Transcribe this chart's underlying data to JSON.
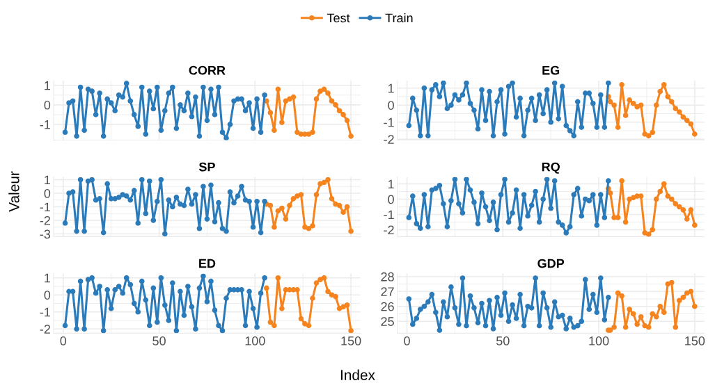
{
  "chart_data": [
    {
      "type": "line",
      "title": "CORR",
      "xlabel": "Index",
      "ylabel": "Valeur",
      "legend": "top",
      "marker": "circle",
      "grid": true,
      "tick_labels": "y",
      "xlim": [
        -5,
        155
      ],
      "xticks": [
        0,
        50,
        100,
        150
      ],
      "ylim": [
        -1.8,
        1.25
      ],
      "yticks": [
        -1,
        0,
        1
      ],
      "series": [
        {
          "name": "Test",
          "color": "#f5841f",
          "x": [
            106,
            108,
            110,
            112,
            114,
            116,
            118,
            120,
            122,
            124,
            126,
            128,
            130,
            132,
            134,
            136,
            138,
            140,
            142,
            144,
            146,
            148,
            150
          ],
          "values": [
            0.2,
            -0.4,
            -1.3,
            0.8,
            -0.9,
            0.2,
            0.3,
            0.4,
            -1.4,
            -1.5,
            -1.5,
            -1.5,
            -1.4,
            0.3,
            0.7,
            0.8,
            0.6,
            0.2,
            0.0,
            -0.3,
            -0.5,
            -0.8,
            -1.6
          ]
        },
        {
          "name": "Train",
          "color": "#2b7bba",
          "x": [
            1,
            3,
            5,
            7,
            9,
            11,
            13,
            15,
            17,
            19,
            21,
            23,
            25,
            27,
            29,
            31,
            33,
            35,
            37,
            39,
            41,
            43,
            45,
            47,
            49,
            51,
            53,
            55,
            57,
            59,
            61,
            63,
            65,
            67,
            69,
            71,
            73,
            75,
            77,
            79,
            81,
            83,
            85,
            87,
            89,
            91,
            93,
            95,
            97,
            99,
            101,
            103,
            105
          ],
          "values": [
            -1.4,
            0.1,
            0.2,
            -1.6,
            0.9,
            -1.3,
            0.8,
            0.7,
            -0.5,
            0.6,
            -1.6,
            0.3,
            0.1,
            -0.3,
            0.5,
            0.4,
            1.1,
            0.2,
            -0.5,
            -1.1,
            0.9,
            -1.5,
            0.7,
            -0.2,
            0.9,
            -1.3,
            -0.3,
            0.6,
            0.9,
            -1.2,
            0.0,
            -0.3,
            0.6,
            -0.6,
            0.4,
            -1.6,
            0.9,
            -0.8,
            0.8,
            -0.5,
            0.9,
            -1.4,
            -1.7,
            -1.0,
            0.2,
            0.3,
            0.3,
            -0.3,
            0.1,
            -1.2,
            0.3,
            -1.4,
            0.5
          ]
        }
      ]
    },
    {
      "type": "line",
      "title": "EG",
      "marker": "circle",
      "grid": true,
      "tick_labels": "y",
      "xlim": [
        -5,
        155
      ],
      "xticks": [
        0,
        50,
        100,
        150
      ],
      "ylim": [
        -2.05,
        1.45
      ],
      "yticks": [
        -2,
        -1,
        0,
        1
      ],
      "series": [
        {
          "color": "#f5841f",
          "x": [
            105,
            106,
            108,
            110,
            112,
            114,
            116,
            118,
            120,
            122,
            124,
            126,
            128,
            130,
            132,
            134,
            136,
            138,
            140,
            142,
            144,
            146,
            148,
            150
          ],
          "values": [
            0.5,
            0.2,
            0.0,
            -1.3,
            1.2,
            -0.6,
            0.3,
            0.1,
            -0.1,
            0.0,
            -1.7,
            -1.8,
            -1.6,
            0.0,
            0.8,
            1.2,
            0.5,
            0.2,
            -0.2,
            -0.4,
            -0.7,
            -0.9,
            -1.1,
            -1.7
          ]
        },
        {
          "color": "#2b7bba",
          "x": [
            1,
            3,
            5,
            7,
            9,
            11,
            13,
            15,
            17,
            19,
            21,
            23,
            25,
            27,
            29,
            31,
            33,
            35,
            37,
            39,
            41,
            43,
            45,
            47,
            49,
            51,
            53,
            55,
            57,
            59,
            61,
            63,
            65,
            67,
            69,
            71,
            73,
            75,
            77,
            79,
            81,
            83,
            85,
            87,
            89,
            91,
            93,
            95,
            97,
            99,
            101,
            103,
            105
          ],
          "values": [
            -1.2,
            0.4,
            -0.3,
            -1.8,
            1.0,
            -1.8,
            0.9,
            1.2,
            0.5,
            1.3,
            -0.2,
            0.0,
            0.6,
            0.3,
            0.6,
            1.3,
            0.1,
            -0.3,
            -1.4,
            0.9,
            -0.9,
            0.8,
            -1.8,
            0.2,
            0.9,
            -1.7,
            1.1,
            1.3,
            -0.7,
            0.4,
            -1.8,
            -0.3,
            0.4,
            -0.9,
            0.6,
            -0.5,
            0.9,
            -1.0,
            1.3,
            -0.8,
            1.1,
            -1.2,
            -1.5,
            -1.8,
            0.2,
            -1.3,
            0.7,
            0.7,
            0.1,
            -1.3,
            0.6,
            -1.3,
            1.3
          ]
        }
      ]
    },
    {
      "type": "line",
      "title": "SP",
      "marker": "circle",
      "grid": true,
      "tick_labels": "y",
      "xlim": [
        -5,
        155
      ],
      "xticks": [
        0,
        50,
        100,
        150
      ],
      "ylim": [
        -3.2,
        1.2
      ],
      "yticks": [
        -3,
        -2,
        -1,
        0,
        1
      ],
      "series": [
        {
          "color": "#f5841f",
          "x": [
            106,
            108,
            110,
            112,
            114,
            116,
            118,
            120,
            122,
            124,
            126,
            128,
            130,
            132,
            134,
            136,
            138,
            140,
            142,
            144,
            146,
            148,
            150
          ],
          "values": [
            -0.8,
            -0.9,
            -2.5,
            -1.3,
            -1.1,
            -1.9,
            -0.9,
            -0.4,
            -0.2,
            -0.1,
            -2.5,
            -2.6,
            -2.4,
            -0.1,
            0.7,
            0.8,
            1.0,
            -0.4,
            -0.8,
            -0.9,
            -1.4,
            -1.0,
            -2.8
          ]
        },
        {
          "color": "#2b7bba",
          "x": [
            1,
            3,
            5,
            7,
            9,
            11,
            13,
            15,
            17,
            19,
            21,
            23,
            25,
            27,
            29,
            31,
            33,
            35,
            37,
            39,
            41,
            43,
            45,
            47,
            49,
            51,
            53,
            55,
            57,
            59,
            61,
            63,
            65,
            67,
            69,
            71,
            73,
            75,
            77,
            79,
            81,
            83,
            85,
            87,
            89,
            91,
            93,
            95,
            97,
            99,
            101,
            103,
            105
          ],
          "values": [
            -2.2,
            0.0,
            0.1,
            -2.8,
            1.0,
            -2.8,
            0.9,
            1.0,
            -0.5,
            -0.4,
            -2.9,
            0.7,
            -0.4,
            -0.4,
            -0.3,
            -0.1,
            -0.2,
            -0.5,
            0.2,
            -2.2,
            1.0,
            -1.5,
            0.9,
            -2.0,
            -0.6,
            1.0,
            -3.0,
            -0.5,
            -1.0,
            -0.3,
            -0.8,
            -0.9,
            0.3,
            -0.8,
            -0.1,
            -2.6,
            0.5,
            -1.9,
            0.6,
            -2.1,
            -0.7,
            -2.6,
            -2.8,
            0.1,
            -0.7,
            -0.2,
            0.5,
            -0.5,
            -0.6,
            -2.5,
            -0.6,
            -2.9,
            -0.6
          ]
        }
      ]
    },
    {
      "type": "line",
      "title": "RQ",
      "marker": "circle",
      "grid": true,
      "tick_labels": "y",
      "xlim": [
        -5,
        155
      ],
      "xticks": [
        0,
        50,
        100,
        150
      ],
      "ylim": [
        -2.45,
        1.45
      ],
      "yticks": [
        -2,
        -1,
        0,
        1
      ],
      "series": [
        {
          "color": "#f5841f",
          "x": [
            105,
            106,
            108,
            110,
            112,
            114,
            116,
            118,
            120,
            122,
            124,
            126,
            128,
            130,
            132,
            134,
            136,
            138,
            140,
            142,
            144,
            146,
            148,
            150
          ],
          "values": [
            0.7,
            0.4,
            -1.2,
            -1.2,
            1.2,
            -1.5,
            0.0,
            0.1,
            0.2,
            0.2,
            -2.2,
            -2.3,
            -2.0,
            0.0,
            0.5,
            1.0,
            0.2,
            0.0,
            -0.3,
            -0.5,
            -0.7,
            -1.3,
            -0.7,
            -1.7
          ]
        },
        {
          "color": "#2b7bba",
          "x": [
            1,
            3,
            5,
            7,
            9,
            11,
            13,
            15,
            17,
            19,
            21,
            23,
            25,
            27,
            29,
            31,
            33,
            35,
            37,
            39,
            41,
            43,
            45,
            47,
            49,
            51,
            53,
            55,
            57,
            59,
            61,
            63,
            65,
            67,
            69,
            71,
            73,
            75,
            77,
            79,
            81,
            83,
            85,
            87,
            89,
            91,
            93,
            95,
            97,
            99,
            101,
            103,
            105
          ],
          "values": [
            -1.2,
            0.2,
            -1.6,
            -1.9,
            0.3,
            -1.8,
            0.6,
            0.7,
            0.9,
            -0.3,
            -1.8,
            -0.1,
            1.3,
            -0.3,
            -0.9,
            1.3,
            0.6,
            -0.2,
            -1.6,
            0.4,
            -0.5,
            -1.4,
            -0.2,
            -2.0,
            0.3,
            1.3,
            -1.5,
            -0.9,
            0.6,
            -1.9,
            0.3,
            -1.1,
            -0.4,
            0.5,
            -1.5,
            0.0,
            1.3,
            -0.6,
            1.2,
            -1.5,
            -1.7,
            -2.2,
            -1.8,
            0.3,
            0.7,
            -1.1,
            0.0,
            -0.1,
            0.3,
            -1.7,
            0.3,
            -1.2,
            1.2
          ]
        }
      ]
    },
    {
      "type": "line",
      "title": "ED",
      "marker": "circle",
      "grid": true,
      "xlim": [
        -5,
        155
      ],
      "xticks": [
        0,
        50,
        100,
        150
      ],
      "ylim": [
        -2.25,
        1.25
      ],
      "yticks": [
        -2,
        -1,
        0,
        1
      ],
      "series": [
        {
          "color": "#f5841f",
          "x": [
            106,
            108,
            110,
            112,
            114,
            116,
            118,
            120,
            122,
            124,
            126,
            128,
            130,
            132,
            134,
            136,
            138,
            140,
            142,
            144,
            146,
            148,
            150
          ],
          "values": [
            0.4,
            -1.6,
            -1.8,
            1.0,
            -0.8,
            0.3,
            0.3,
            0.3,
            0.3,
            -1.4,
            -1.7,
            -1.8,
            -0.2,
            0.7,
            0.9,
            1.0,
            0.2,
            0.0,
            -0.1,
            -0.8,
            -0.7,
            -0.6,
            -2.1
          ]
        },
        {
          "color": "#2b7bba",
          "x": [
            1,
            3,
            5,
            7,
            9,
            11,
            13,
            15,
            17,
            19,
            21,
            23,
            25,
            27,
            29,
            31,
            33,
            35,
            37,
            39,
            41,
            43,
            45,
            47,
            49,
            51,
            53,
            55,
            57,
            59,
            61,
            63,
            65,
            67,
            69,
            71,
            73,
            75,
            77,
            79,
            81,
            83,
            85,
            87,
            89,
            91,
            93,
            95,
            97,
            99,
            101,
            103,
            105
          ],
          "values": [
            -1.8,
            0.2,
            0.2,
            -2.0,
            0.8,
            -2.0,
            0.9,
            1.0,
            0.1,
            0.5,
            -2.1,
            0.3,
            -0.8,
            0.3,
            0.5,
            0.1,
            1.0,
            0.6,
            -0.5,
            -1.0,
            0.8,
            -0.3,
            -1.8,
            0.4,
            -1.6,
            1.0,
            -0.6,
            -1.5,
            0.7,
            -2.1,
            0.2,
            -1.2,
            0.5,
            -0.7,
            -2.0,
            0.4,
            1.1,
            -0.4,
            0.8,
            -0.9,
            -1.8,
            -2.1,
            -0.2,
            0.3,
            0.3,
            0.3,
            0.3,
            -1.8,
            0.2,
            -0.8,
            -1.9,
            0.1,
            1.0
          ]
        }
      ]
    },
    {
      "type": "line",
      "title": "GDP",
      "marker": "circle",
      "grid": true,
      "xlim": [
        -5,
        155
      ],
      "xticks": [
        0,
        50,
        100,
        150
      ],
      "ylim": [
        24.2,
        28.2
      ],
      "yticks": [
        25,
        26,
        27,
        28
      ],
      "series": [
        {
          "color": "#f5841f",
          "x": [
            105,
            106,
            108,
            110,
            112,
            114,
            116,
            118,
            120,
            122,
            124,
            126,
            128,
            130,
            132,
            134,
            136,
            138,
            140,
            142,
            144,
            146,
            148,
            150
          ],
          "values": [
            24.4,
            24.4,
            24.6,
            26.9,
            26.7,
            24.6,
            25.8,
            25.5,
            24.8,
            25.3,
            24.7,
            24.6,
            25.5,
            25.3,
            26.0,
            25.6,
            27.5,
            27.6,
            24.6,
            26.4,
            26.6,
            26.9,
            27.0,
            26.0
          ]
        },
        {
          "color": "#2b7bba",
          "x": [
            1,
            3,
            5,
            7,
            9,
            11,
            13,
            15,
            17,
            19,
            21,
            23,
            25,
            27,
            29,
            31,
            33,
            35,
            37,
            39,
            41,
            43,
            45,
            47,
            49,
            51,
            53,
            55,
            57,
            59,
            61,
            63,
            65,
            67,
            69,
            71,
            73,
            75,
            77,
            79,
            81,
            83,
            85,
            87,
            89,
            91,
            93,
            95,
            97,
            99,
            101,
            103,
            105
          ],
          "values": [
            26.5,
            24.8,
            25.2,
            25.8,
            26.0,
            26.3,
            26.8,
            25.6,
            24.4,
            26.3,
            25.3,
            27.3,
            25.9,
            24.8,
            27.9,
            24.7,
            26.7,
            25.9,
            24.9,
            26.2,
            24.7,
            26.4,
            24.5,
            26.6,
            25.4,
            26.9,
            25.0,
            26.1,
            25.2,
            26.8,
            24.7,
            26.0,
            25.9,
            27.9,
            24.7,
            26.9,
            25.9,
            24.6,
            26.3,
            25.3,
            25.4,
            24.5,
            25.2,
            24.6,
            24.7,
            25.0,
            27.8,
            25.8,
            26.8,
            25.6,
            27.9,
            25.1,
            26.6
          ]
        }
      ]
    }
  ]
}
